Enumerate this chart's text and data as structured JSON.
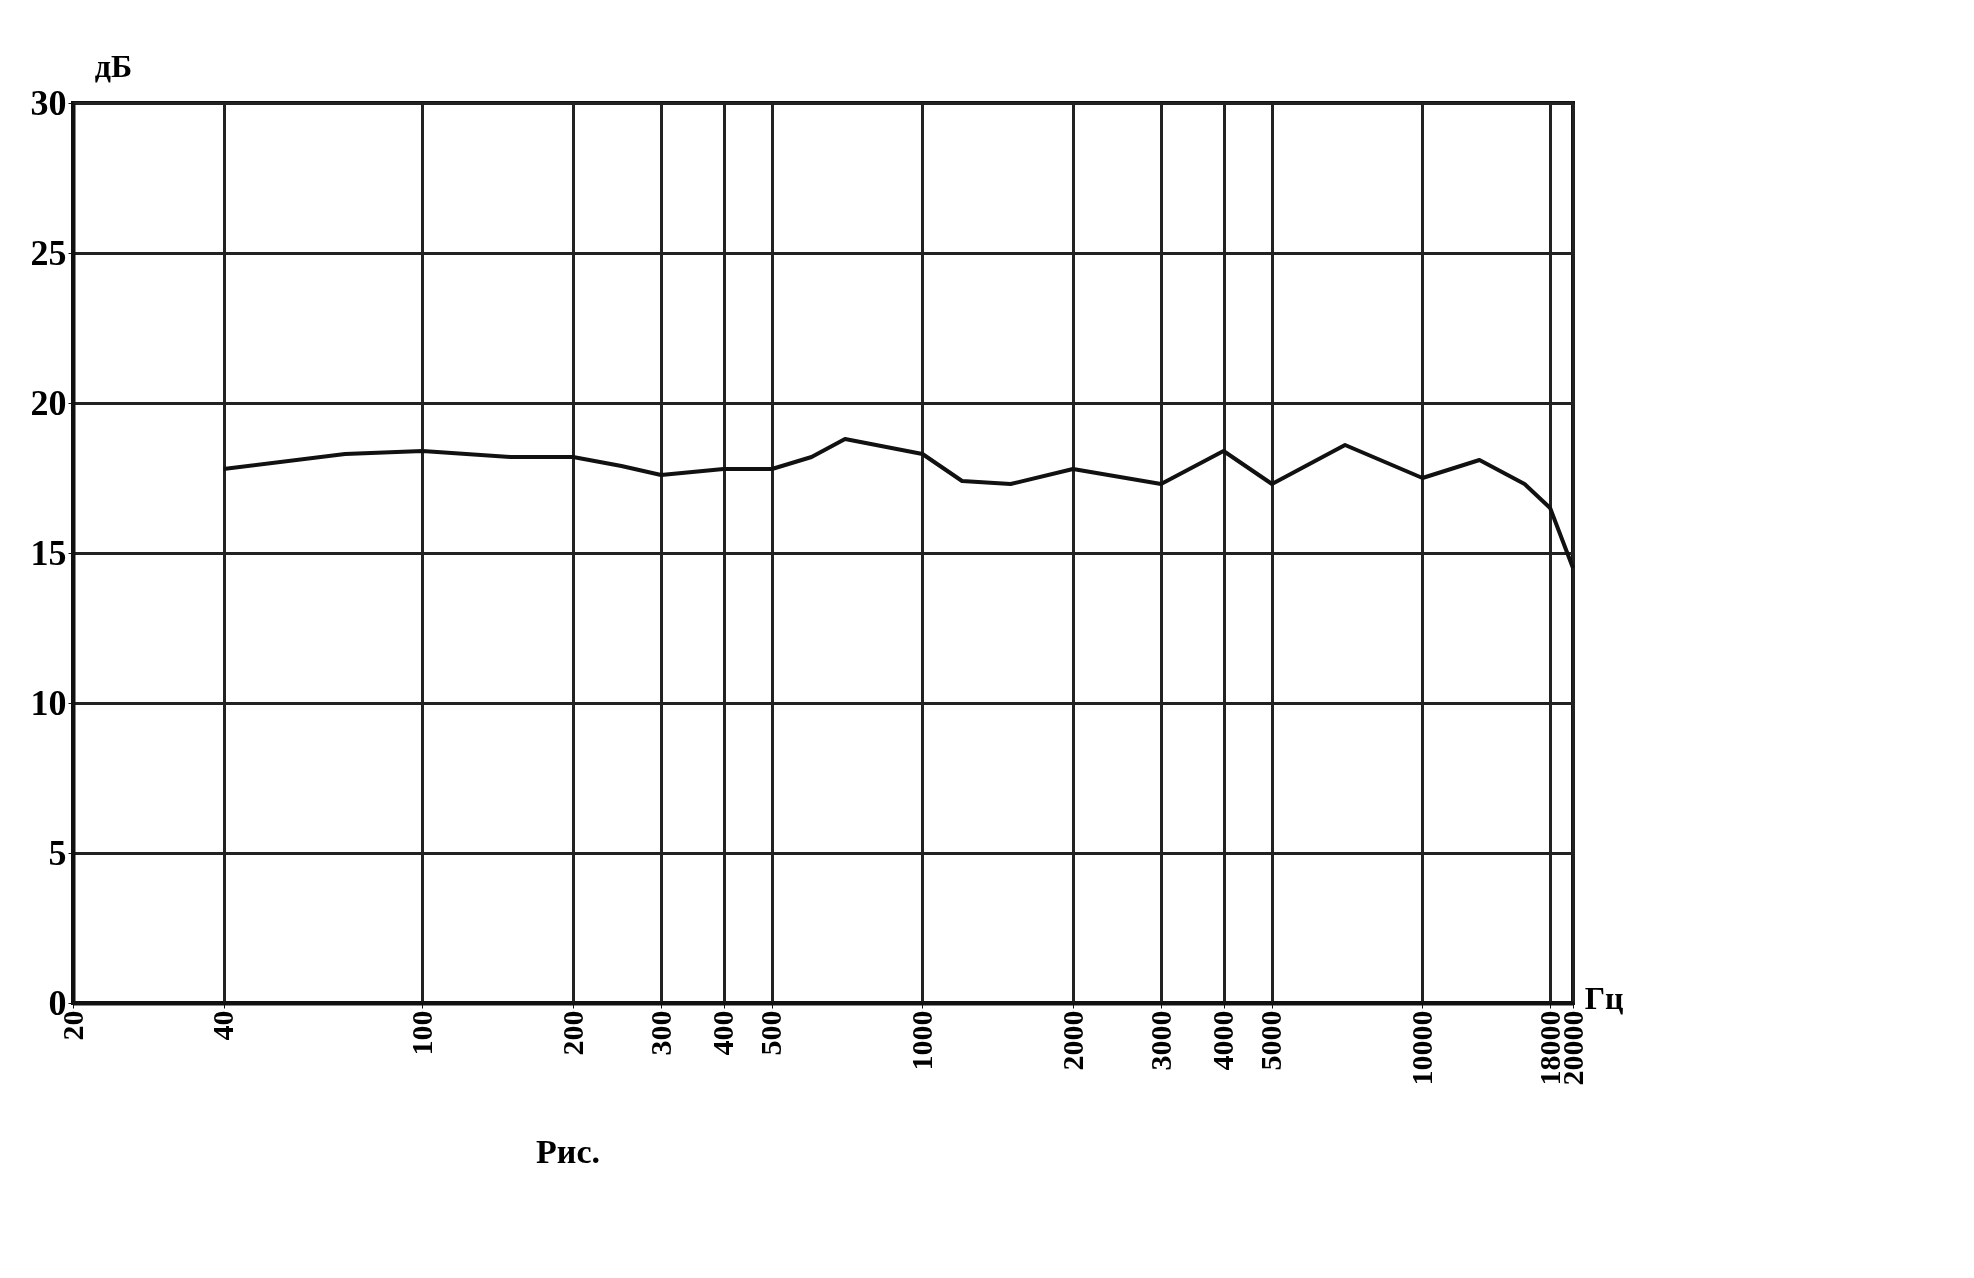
{
  "chart_data": {
    "type": "line",
    "xlabel": "Гц",
    "ylabel": "дБ",
    "annotations": [
      "Рис."
    ],
    "log": "x",
    "xlim": [
      20,
      20000
    ],
    "xticks": [
      20,
      40,
      100,
      200,
      300,
      400,
      500,
      1000,
      2000,
      3000,
      4000,
      5000,
      10000,
      18000,
      20000
    ],
    "ylim": [
      0,
      30
    ],
    "yticks": [
      0,
      5,
      10,
      15,
      20,
      25,
      30
    ],
    "grid": true,
    "line_style": "solid",
    "series": [
      {
        "color": "#111111",
        "x": [
          40,
          70,
          100,
          150,
          200,
          250,
          300,
          400,
          500,
          600,
          700,
          1000,
          1200,
          1500,
          2000,
          3000,
          4000,
          5000,
          7000,
          10000,
          13000,
          16000,
          18000,
          20000
        ],
        "values": [
          17.8,
          18.3,
          18.4,
          18.2,
          18.2,
          17.9,
          17.6,
          17.8,
          17.8,
          18.2,
          18.8,
          18.3,
          17.4,
          17.3,
          17.8,
          17.3,
          18.4,
          17.3,
          18.6,
          17.5,
          18.1,
          17.3,
          16.5,
          14.5
        ]
      }
    ]
  }
}
